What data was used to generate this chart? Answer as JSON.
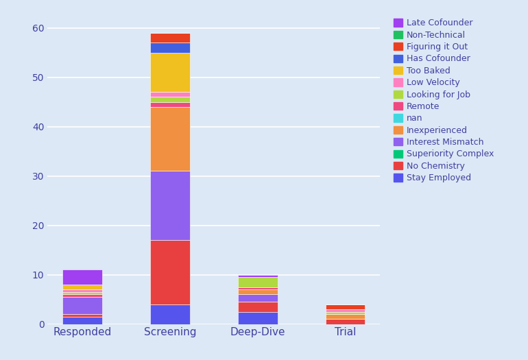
{
  "categories": [
    "Responded",
    "Screening",
    "Deep-Dive",
    "Trial"
  ],
  "series": [
    {
      "label": "Stay Employed",
      "color": "#5555ee",
      "values": [
        1.5,
        4.0,
        2.5,
        0.0
      ]
    },
    {
      "label": "No Chemistry",
      "color": "#e84040",
      "values": [
        0.5,
        13.0,
        2.0,
        1.0
      ]
    },
    {
      "label": "Superiority Complex",
      "color": "#00c878",
      "values": [
        0.0,
        0.0,
        0.0,
        0.0
      ]
    },
    {
      "label": "Interest Mismatch",
      "color": "#9060ee",
      "values": [
        3.5,
        14.0,
        1.5,
        0.0
      ]
    },
    {
      "label": "Inexperienced",
      "color": "#f09040",
      "values": [
        0.0,
        13.0,
        1.0,
        1.0
      ]
    },
    {
      "label": "nan",
      "color": "#40d8e0",
      "values": [
        0.0,
        0.0,
        0.0,
        0.0
      ]
    },
    {
      "label": "Remote",
      "color": "#f04880",
      "values": [
        0.5,
        1.0,
        0.5,
        0.0
      ]
    },
    {
      "label": "Looking for Job",
      "color": "#b0d840",
      "values": [
        0.5,
        1.0,
        2.0,
        0.5
      ]
    },
    {
      "label": "Low Velocity",
      "color": "#ff80c0",
      "values": [
        0.5,
        1.0,
        0.0,
        0.5
      ]
    },
    {
      "label": "Too Baked",
      "color": "#f0c020",
      "values": [
        1.0,
        8.0,
        0.0,
        0.0
      ]
    },
    {
      "label": "Has Cofounder",
      "color": "#4060dd",
      "values": [
        0.0,
        2.0,
        0.0,
        0.0
      ]
    },
    {
      "label": "Figuring it Out",
      "color": "#e84020",
      "values": [
        0.0,
        2.0,
        0.0,
        1.0
      ]
    },
    {
      "label": "Non-Technical",
      "color": "#20c060",
      "values": [
        0.0,
        0.0,
        0.0,
        0.0
      ]
    },
    {
      "label": "Late Cofounder",
      "color": "#a040f0",
      "values": [
        3.0,
        0.0,
        0.5,
        0.0
      ]
    }
  ],
  "ylim": [
    0,
    62
  ],
  "yticks": [
    0,
    10,
    20,
    30,
    40,
    50,
    60
  ],
  "bg_color": "#dce8f5",
  "bar_width": 0.45
}
